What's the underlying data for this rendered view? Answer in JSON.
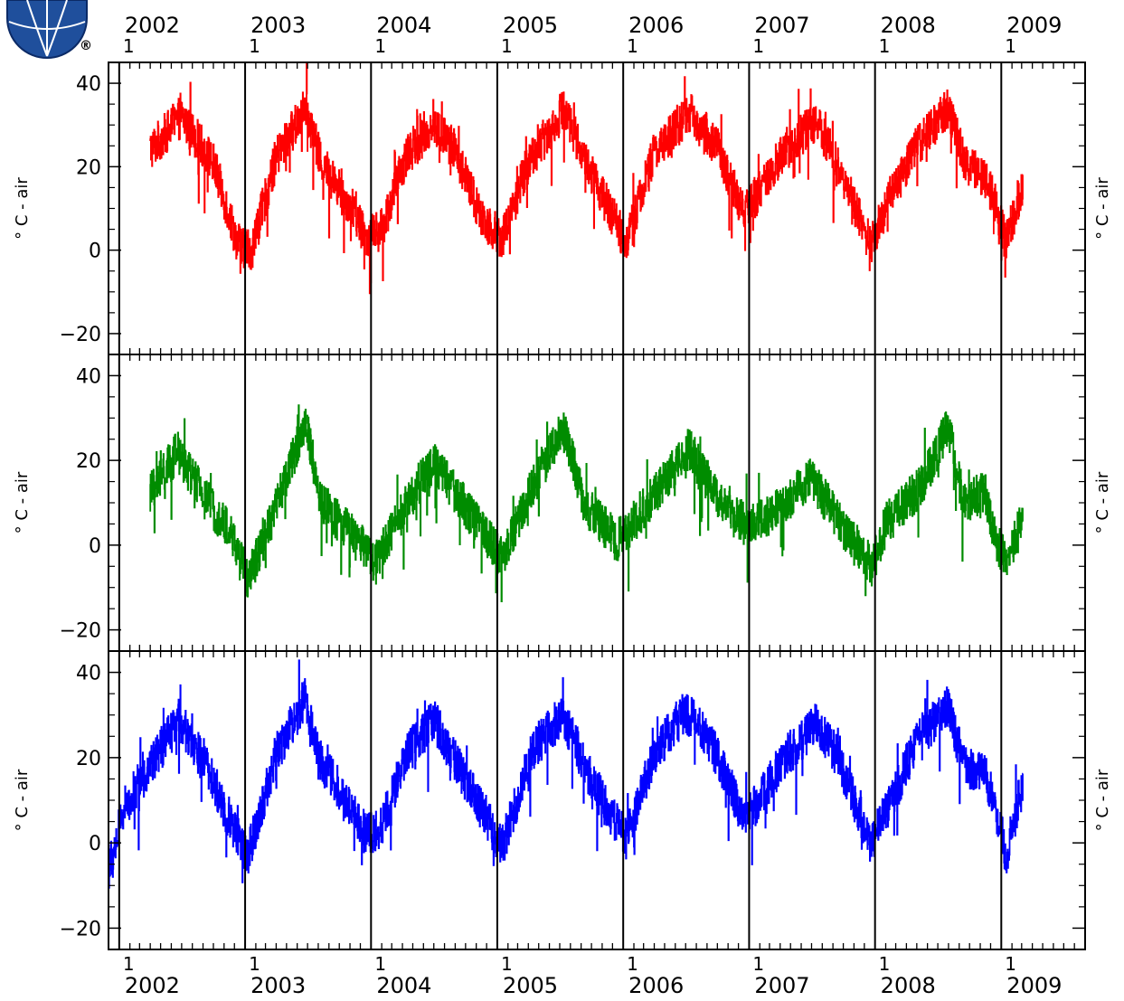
{
  "logo": {
    "name": "globe-logo",
    "mark": "®"
  },
  "chart_data": {
    "type": "line",
    "time_axis": {
      "years": [
        "2002",
        "2003",
        "2004",
        "2005",
        "2006",
        "2007",
        "2008",
        "2009"
      ],
      "month_labels": [
        "1",
        "1",
        "1",
        "1",
        "1",
        "1",
        "1",
        "1"
      ],
      "range": [
        "2001-12-01",
        "2009-09-01"
      ]
    },
    "panels": [
      {
        "ylabel": "° C - air",
        "yticks": [
          "40",
          "20",
          "0",
          "−20"
        ],
        "ylim": [
          -25,
          45
        ],
        "color": "#ff0000",
        "series_start": "2002-04-01",
        "segment_breaks": [
          "2003-07-01",
          "2008-12-10"
        ],
        "series_end": "2009-03-05",
        "anchors": [
          {
            "date": "2002-04-01",
            "value": 24
          },
          {
            "date": "2002-07-01",
            "value": 32
          },
          {
            "date": "2002-10-01",
            "value": 21
          },
          {
            "date": "2002-12-10",
            "value": 2
          },
          {
            "date": "2003-01-20",
            "value": 0
          },
          {
            "date": "2003-04-01",
            "value": 22
          },
          {
            "date": "2003-06-25",
            "value": 34
          },
          {
            "date": "2003-08-10",
            "value": 21
          },
          {
            "date": "2003-11-01",
            "value": 11
          },
          {
            "date": "2003-12-20",
            "value": 3
          },
          {
            "date": "2004-02-01",
            "value": 5
          },
          {
            "date": "2004-04-15",
            "value": 23
          },
          {
            "date": "2004-07-01",
            "value": 30
          },
          {
            "date": "2004-09-01",
            "value": 24
          },
          {
            "date": "2004-11-15",
            "value": 8
          },
          {
            "date": "2005-01-15",
            "value": 3
          },
          {
            "date": "2005-04-01",
            "value": 21
          },
          {
            "date": "2005-07-15",
            "value": 34
          },
          {
            "date": "2005-09-15",
            "value": 21
          },
          {
            "date": "2005-11-20",
            "value": 10
          },
          {
            "date": "2006-01-10",
            "value": 2
          },
          {
            "date": "2006-04-01",
            "value": 23
          },
          {
            "date": "2006-07-10",
            "value": 33
          },
          {
            "date": "2006-10-01",
            "value": 25
          },
          {
            "date": "2006-12-15",
            "value": 9
          },
          {
            "date": "2007-02-01",
            "value": 14
          },
          {
            "date": "2007-04-15",
            "value": 24
          },
          {
            "date": "2007-07-15",
            "value": 31
          },
          {
            "date": "2007-09-15",
            "value": 21
          },
          {
            "date": "2007-12-20",
            "value": 1
          },
          {
            "date": "2008-02-15",
            "value": 13
          },
          {
            "date": "2008-05-01",
            "value": 25
          },
          {
            "date": "2008-08-01",
            "value": 34
          },
          {
            "date": "2008-09-15",
            "value": 22
          },
          {
            "date": "2008-11-15",
            "value": 17
          },
          {
            "date": "2008-12-10",
            "value": 13
          },
          {
            "date": "2009-01-15",
            "value": 2
          },
          {
            "date": "2009-03-05",
            "value": 16
          }
        ]
      },
      {
        "ylabel": "° C - air",
        "yticks": [
          "40",
          "20",
          "0",
          "−20"
        ],
        "ylim": [
          -25,
          45
        ],
        "color": "#008c00",
        "series_start": "2002-04-01",
        "segment_breaks": [
          "2003-07-01",
          "2008-12-10"
        ],
        "series_end": "2009-03-05",
        "anchors": [
          {
            "date": "2002-04-01",
            "value": 12
          },
          {
            "date": "2002-06-20",
            "value": 22
          },
          {
            "date": "2002-09-01",
            "value": 12
          },
          {
            "date": "2002-11-20",
            "value": 3
          },
          {
            "date": "2003-01-10",
            "value": -8
          },
          {
            "date": "2003-03-15",
            "value": 5
          },
          {
            "date": "2003-06-25",
            "value": 29
          },
          {
            "date": "2003-08-10",
            "value": 10
          },
          {
            "date": "2003-11-01",
            "value": 3
          },
          {
            "date": "2004-01-15",
            "value": -4
          },
          {
            "date": "2004-04-15",
            "value": 10
          },
          {
            "date": "2004-07-01",
            "value": 20
          },
          {
            "date": "2004-10-01",
            "value": 9
          },
          {
            "date": "2005-01-15",
            "value": -3
          },
          {
            "date": "2005-04-15",
            "value": 14
          },
          {
            "date": "2005-07-10",
            "value": 28
          },
          {
            "date": "2005-09-15",
            "value": 9
          },
          {
            "date": "2005-12-15",
            "value": 1
          },
          {
            "date": "2006-04-15",
            "value": 13
          },
          {
            "date": "2006-07-10",
            "value": 23
          },
          {
            "date": "2006-10-01",
            "value": 11
          },
          {
            "date": "2007-01-01",
            "value": 4
          },
          {
            "date": "2007-04-01",
            "value": 9
          },
          {
            "date": "2007-07-01",
            "value": 16
          },
          {
            "date": "2007-10-01",
            "value": 4
          },
          {
            "date": "2007-12-25",
            "value": -5
          },
          {
            "date": "2008-02-01",
            "value": 5
          },
          {
            "date": "2008-05-15",
            "value": 14
          },
          {
            "date": "2008-08-01",
            "value": 28
          },
          {
            "date": "2008-09-15",
            "value": 10
          },
          {
            "date": "2008-11-15",
            "value": 13
          },
          {
            "date": "2008-12-10",
            "value": 3
          },
          {
            "date": "2009-01-15",
            "value": -4
          },
          {
            "date": "2009-03-05",
            "value": 6
          }
        ]
      },
      {
        "ylabel": "° C - air",
        "yticks": [
          "40",
          "20",
          "0",
          "−20"
        ],
        "ylim": [
          -25,
          45
        ],
        "color": "#0000ff",
        "series_start": "2001-12-01",
        "segment_breaks": [
          "2003-07-01",
          "2008-12-10"
        ],
        "series_end": "2009-03-05",
        "anchors": [
          {
            "date": "2001-12-01",
            "value": -7
          },
          {
            "date": "2002-01-15",
            "value": 8
          },
          {
            "date": "2002-04-01",
            "value": 18
          },
          {
            "date": "2002-06-25",
            "value": 29
          },
          {
            "date": "2002-09-15",
            "value": 17
          },
          {
            "date": "2002-11-15",
            "value": 6
          },
          {
            "date": "2003-01-10",
            "value": -3
          },
          {
            "date": "2003-04-01",
            "value": 21
          },
          {
            "date": "2003-06-25",
            "value": 34
          },
          {
            "date": "2003-08-10",
            "value": 19
          },
          {
            "date": "2003-11-01",
            "value": 9
          },
          {
            "date": "2003-12-20",
            "value": 2
          },
          {
            "date": "2004-02-01",
            "value": 4
          },
          {
            "date": "2004-04-15",
            "value": 21
          },
          {
            "date": "2004-07-01",
            "value": 29
          },
          {
            "date": "2004-09-15",
            "value": 17
          },
          {
            "date": "2004-12-01",
            "value": 6
          },
          {
            "date": "2005-01-15",
            "value": -1
          },
          {
            "date": "2005-04-15",
            "value": 22
          },
          {
            "date": "2005-07-10",
            "value": 30
          },
          {
            "date": "2005-09-15",
            "value": 17
          },
          {
            "date": "2005-12-01",
            "value": 6
          },
          {
            "date": "2006-01-10",
            "value": 1
          },
          {
            "date": "2006-04-01",
            "value": 21
          },
          {
            "date": "2006-07-01",
            "value": 31
          },
          {
            "date": "2006-09-15",
            "value": 23
          },
          {
            "date": "2006-12-15",
            "value": 6
          },
          {
            "date": "2007-02-01",
            "value": 10
          },
          {
            "date": "2007-04-15",
            "value": 20
          },
          {
            "date": "2007-07-15",
            "value": 28
          },
          {
            "date": "2007-09-15",
            "value": 20
          },
          {
            "date": "2007-12-20",
            "value": 0
          },
          {
            "date": "2008-02-15",
            "value": 9
          },
          {
            "date": "2008-05-01",
            "value": 24
          },
          {
            "date": "2008-08-01",
            "value": 32
          },
          {
            "date": "2008-09-15",
            "value": 18
          },
          {
            "date": "2008-11-15",
            "value": 17
          },
          {
            "date": "2008-12-10",
            "value": 10
          },
          {
            "date": "2009-01-15",
            "value": -3
          },
          {
            "date": "2009-03-05",
            "value": 14
          }
        ]
      }
    ]
  }
}
